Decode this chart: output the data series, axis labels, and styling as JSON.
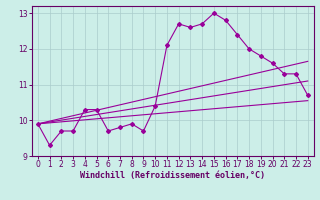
{
  "xlabel": "Windchill (Refroidissement éolien,°C)",
  "background_color": "#cceee8",
  "grid_color": "#aacccc",
  "line_color": "#990099",
  "spine_color": "#660066",
  "xlim": [
    -0.5,
    23.5
  ],
  "ylim": [
    9.0,
    13.2
  ],
  "yticks": [
    9,
    10,
    11,
    12,
    13
  ],
  "xticks": [
    0,
    1,
    2,
    3,
    4,
    5,
    6,
    7,
    8,
    9,
    10,
    11,
    12,
    13,
    14,
    15,
    16,
    17,
    18,
    19,
    20,
    21,
    22,
    23
  ],
  "series1_x": [
    0,
    1,
    2,
    3,
    4,
    5,
    6,
    7,
    8,
    9,
    10,
    11,
    12,
    13,
    14,
    15,
    16,
    17,
    18,
    19,
    20,
    21,
    22,
    23
  ],
  "series1_y": [
    9.9,
    9.3,
    9.7,
    9.7,
    10.3,
    10.3,
    9.7,
    9.8,
    9.9,
    9.7,
    10.4,
    12.1,
    12.7,
    12.6,
    12.7,
    13.0,
    12.8,
    12.4,
    12.0,
    11.8,
    11.6,
    11.3,
    11.3,
    10.7
  ],
  "trend1_x": [
    0,
    23
  ],
  "trend1_y": [
    9.9,
    11.65
  ],
  "trend2_x": [
    0,
    23
  ],
  "trend2_y": [
    9.9,
    11.1
  ],
  "trend3_x": [
    0,
    23
  ],
  "trend3_y": [
    9.9,
    10.55
  ],
  "tick_fontsize": 5.5,
  "label_fontsize": 6.0
}
